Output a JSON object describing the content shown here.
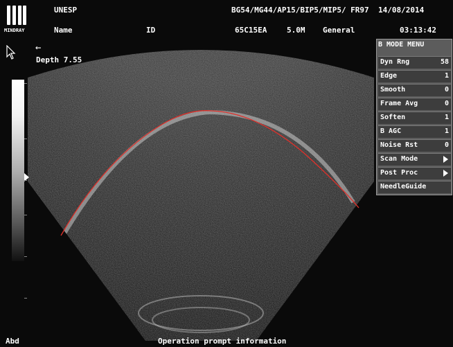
{
  "header": {
    "logo_text": "MINDRAY",
    "institution": "UNESP",
    "name_label": "Name",
    "id_label": "ID",
    "params": "BG54/MG44/AP15/BIP5/MIP5/ FR97",
    "date": "14/08/2014",
    "probe": "65C15EA",
    "frequency": "5.0M",
    "preset": "General",
    "time": "03:13:42"
  },
  "overlay": {
    "depth_label": "Depth",
    "depth_value": "7.55"
  },
  "menu": {
    "title": "B MODE MENU",
    "items": [
      {
        "label": "Dyn Rng",
        "value": "58"
      },
      {
        "label": "Edge",
        "value": "1"
      },
      {
        "label": "Smooth",
        "value": "0"
      },
      {
        "label": "Frame Avg",
        "value": "0"
      },
      {
        "label": "Soften",
        "value": "1"
      },
      {
        "label": "B AGC",
        "value": "1"
      },
      {
        "label": "Noise Rst",
        "value": "0"
      },
      {
        "label": "Scan Mode",
        "value": ""
      },
      {
        "label": "Post Proc",
        "value": ""
      },
      {
        "label": "NeedleGuide",
        "value": ""
      }
    ]
  },
  "footer": {
    "mode": "Abd",
    "prompt": "Operation prompt information"
  },
  "colors": {
    "trace": "#e0302a",
    "menu_bg": "#5c5c5c",
    "menu_item_bg": "#3d3d3d",
    "background": "#0a0a0a"
  }
}
